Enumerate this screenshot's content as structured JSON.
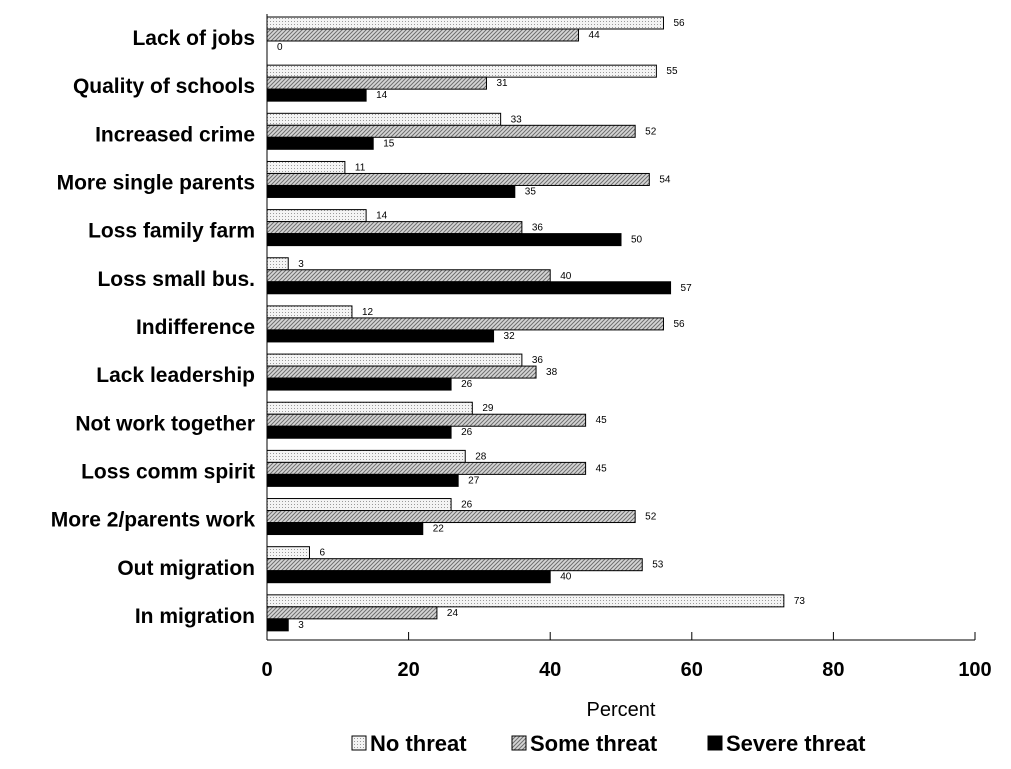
{
  "chart_data": {
    "type": "bar",
    "orientation": "horizontal",
    "categories": [
      "Lack of jobs",
      "Quality of schools",
      "Increased crime",
      "More single parents",
      "Loss family farm",
      "Loss small bus.",
      "Indifference",
      "Lack leadership",
      "Not work together",
      "Loss comm spirit",
      "More 2/parents work",
      "Out migration",
      "In migration"
    ],
    "series": [
      {
        "name": "No threat",
        "color": "#eeeeee",
        "pattern": "dots",
        "values": [
          56,
          55,
          33,
          11,
          14,
          3,
          12,
          36,
          29,
          28,
          26,
          6,
          73
        ]
      },
      {
        "name": "Some threat",
        "color": "#bdbdbd",
        "pattern": "diagonal-hatch",
        "values": [
          44,
          31,
          52,
          54,
          36,
          40,
          56,
          38,
          45,
          45,
          52,
          53,
          24
        ]
      },
      {
        "name": "Severe threat",
        "color": "#000000",
        "pattern": "solid",
        "values": [
          0,
          14,
          15,
          35,
          50,
          57,
          32,
          26,
          26,
          27,
          22,
          40,
          3
        ]
      }
    ],
    "xlabel": "Percent",
    "ylabel": "",
    "title": "",
    "xlim": [
      0,
      100
    ],
    "xticks": [
      0,
      20,
      40,
      60,
      80,
      100
    ],
    "grid": false,
    "legend": "bottom",
    "data_labels": true
  }
}
